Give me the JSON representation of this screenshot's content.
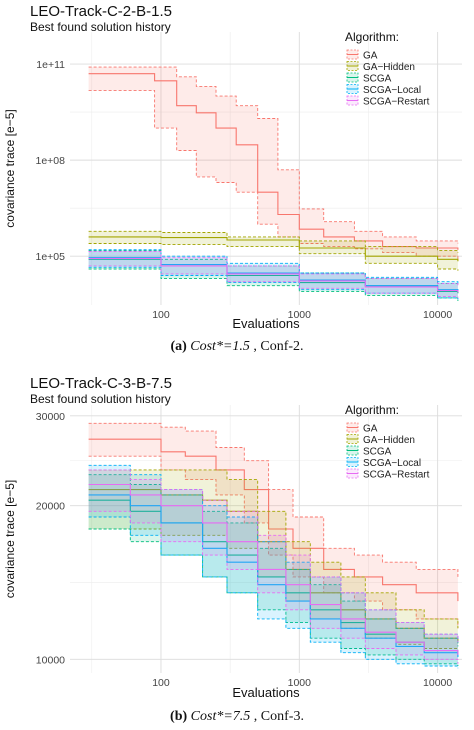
{
  "chart_data": [
    {
      "type": "line",
      "title": "LEO-Track-C-2-B-1.5",
      "subtitle": "Best found solution history",
      "xlabel": "Evaluations",
      "ylabel": "covariance trace [e−5]",
      "x_scale": "log",
      "y_scale": "log",
      "xlim": [
        22,
        15000
      ],
      "ylim": [
        3000,
        1000000000000
      ],
      "x_ticks": [
        100,
        1000,
        10000
      ],
      "x_tick_labels": [
        "100",
        "1000",
        "10000"
      ],
      "y_ticks": [
        100000,
        100000000,
        100000000000
      ],
      "y_tick_labels": [
        "1e+05",
        "1e+08",
        "1e+11"
      ],
      "grid": true,
      "legend_title": "Algorithm:",
      "legend_position": "top-right",
      "caption_label": "(a)",
      "caption_math": "Cost*=1.5",
      "caption_text": ", Conf-2.",
      "series": [
        {
          "name": "GA",
          "color": "#f8766d",
          "x": [
            30,
            60,
            90,
            130,
            180,
            250,
            350,
            500,
            700,
            1000,
            1500,
            2500,
            4000,
            7000,
            14000
          ],
          "median": [
            50000000000,
            50000000000,
            30000000000,
            5000000000,
            3000000000,
            1000000000,
            300000000,
            10000000,
            2000000,
            700000,
            400000,
            300000,
            200000,
            180000,
            160000
          ],
          "lower": [
            15000000000,
            15000000000,
            1000000000,
            200000000,
            30000000,
            20000000,
            10000000,
            1000000,
            400000,
            250000,
            200000,
            170000,
            130000,
            100000,
            80000
          ],
          "upper": [
            80000000000,
            80000000000,
            80000000000,
            40000000000,
            20000000000,
            10000000000,
            5000000000,
            2000000000,
            50000000,
            3000000,
            1200000,
            600000,
            400000,
            300000,
            250000
          ]
        },
        {
          "name": "GA−Hidden",
          "color": "#a3a500",
          "x": [
            30,
            100,
            300,
            1000,
            3000,
            10000,
            14000
          ],
          "median": [
            400000,
            380000,
            320000,
            180000,
            100000,
            80000,
            70000
          ],
          "lower": [
            250000,
            230000,
            200000,
            120000,
            60000,
            40000,
            35000
          ],
          "upper": [
            600000,
            550000,
            400000,
            300000,
            200000,
            150000,
            130000
          ]
        },
        {
          "name": "SCGA",
          "color": "#00bf7d",
          "x": [
            30,
            100,
            300,
            1000,
            3000,
            10000,
            14000
          ],
          "median": [
            80000,
            50000,
            25000,
            15000,
            12000,
            8000,
            7000
          ],
          "lower": [
            40000,
            20000,
            12000,
            8000,
            6000,
            5000,
            4000
          ],
          "upper": [
            150000,
            80000,
            50000,
            30000,
            20000,
            14000,
            12000
          ]
        },
        {
          "name": "SCGA−Local",
          "color": "#00b0f6",
          "x": [
            30,
            100,
            300,
            1000,
            3000,
            10000,
            14000
          ],
          "median": [
            90000,
            55000,
            30000,
            18000,
            12000,
            9000,
            8000
          ],
          "lower": [
            45000,
            25000,
            15000,
            9000,
            7000,
            5000,
            4500
          ],
          "upper": [
            160000,
            100000,
            60000,
            30000,
            22000,
            16000,
            14000
          ]
        },
        {
          "name": "SCGA−Restart",
          "color": "#e76bf3",
          "x": [
            30,
            100,
            300,
            1000,
            3000,
            10000,
            14000
          ],
          "median": [
            85000,
            50000,
            28000,
            17000,
            11000,
            8500,
            7500
          ],
          "lower": [
            50000,
            28000,
            16000,
            10000,
            7000,
            5500,
            5000
          ],
          "upper": [
            140000,
            90000,
            50000,
            28000,
            20000,
            14000,
            12000
          ]
        }
      ]
    },
    {
      "type": "line",
      "title": "LEO-Track-C-3-B-7.5",
      "subtitle": "Best found solution history",
      "xlabel": "Evaluations",
      "ylabel": "covariance trace [e−5]",
      "x_scale": "log",
      "y_scale": "log",
      "xlim": [
        22,
        15000
      ],
      "ylim": [
        9400,
        31500
      ],
      "x_ticks": [
        100,
        1000,
        10000
      ],
      "x_tick_labels": [
        "100",
        "1000",
        "10000"
      ],
      "y_ticks": [
        10000,
        20000,
        30000
      ],
      "y_tick_labels": [
        "10000",
        "20000",
        "30000"
      ],
      "grid": true,
      "legend_title": "Algorithm:",
      "legend_position": "top-right",
      "caption_label": "(b)",
      "caption_math": "Cost*=7.5",
      "caption_text": ", Conf-3.",
      "series": [
        {
          "name": "GA",
          "color": "#f8766d",
          "x": [
            30,
            60,
            100,
            150,
            250,
            400,
            600,
            900,
            1500,
            2500,
            4000,
            7000,
            14000
          ],
          "median": [
            27000,
            27000,
            25500,
            25000,
            23500,
            21500,
            18000,
            16500,
            15000,
            14500,
            14000,
            13500,
            13000
          ],
          "lower": [
            25000,
            25000,
            23500,
            22500,
            21000,
            18500,
            16000,
            14500,
            13500,
            13000,
            12500,
            12000,
            11500
          ],
          "upper": [
            29000,
            29000,
            28500,
            28000,
            26000,
            24500,
            21500,
            19000,
            16500,
            16000,
            15500,
            15000,
            14500
          ]
        },
        {
          "name": "GA−Hidden",
          "color": "#a3a500",
          "x": [
            30,
            100,
            200,
            300,
            500,
            800,
            1200,
            2000,
            3000,
            5000,
            8000,
            14000
          ],
          "median": [
            21500,
            21000,
            20500,
            19500,
            17000,
            15000,
            13500,
            12500,
            12000,
            11500,
            11000,
            10800
          ],
          "lower": [
            18000,
            17500,
            17500,
            16500,
            14500,
            13000,
            12000,
            11500,
            11000,
            10700,
            10500,
            10400
          ],
          "upper": [
            23500,
            23500,
            23500,
            22500,
            19500,
            17000,
            15500,
            14500,
            13500,
            12500,
            12000,
            11500
          ]
        },
        {
          "name": "SCGA",
          "color": "#00bf7d",
          "x": [
            30,
            60,
            100,
            200,
            300,
            500,
            800,
            1200,
            2000,
            3000,
            5000,
            8000,
            14000
          ],
          "median": [
            20500,
            19500,
            18500,
            17000,
            16000,
            14500,
            13500,
            12500,
            11800,
            11200,
            10800,
            10400,
            10200
          ],
          "lower": [
            18000,
            17000,
            16000,
            14500,
            13500,
            12500,
            11800,
            11000,
            10500,
            10200,
            10000,
            9800,
            9700
          ],
          "upper": [
            23000,
            22000,
            21000,
            19500,
            18500,
            16500,
            15000,
            14000,
            13000,
            12000,
            11500,
            11000,
            10600
          ]
        },
        {
          "name": "SCGA−Local",
          "color": "#00b0f6",
          "x": [
            30,
            60,
            100,
            200,
            300,
            500,
            800,
            1200,
            2000,
            3000,
            5000,
            8000,
            14000
          ],
          "median": [
            21000,
            20000,
            18500,
            16500,
            15500,
            14000,
            13000,
            12000,
            11500,
            11000,
            10600,
            10300,
            10100
          ],
          "lower": [
            19000,
            17500,
            16000,
            14500,
            13500,
            12000,
            11500,
            10800,
            10300,
            10000,
            9800,
            9700,
            9600
          ],
          "upper": [
            24000,
            23000,
            21500,
            20000,
            19000,
            17000,
            15500,
            14500,
            13500,
            12500,
            11800,
            11200,
            10800
          ]
        },
        {
          "name": "SCGA−Restart",
          "color": "#e76bf3",
          "x": [
            30,
            60,
            100,
            200,
            300,
            500,
            800,
            1200,
            2000,
            3000,
            5000,
            8000,
            14000
          ],
          "median": [
            22000,
            21000,
            20000,
            18500,
            17000,
            15000,
            14000,
            12800,
            12000,
            11300,
            10800,
            10400,
            10200
          ],
          "lower": [
            19500,
            18500,
            17000,
            16000,
            15000,
            13500,
            12500,
            11500,
            11000,
            10500,
            10200,
            10000,
            9800
          ],
          "upper": [
            23500,
            22500,
            21500,
            20500,
            19500,
            17500,
            16000,
            14500,
            13500,
            12500,
            11800,
            11200,
            10800
          ]
        }
      ]
    }
  ]
}
